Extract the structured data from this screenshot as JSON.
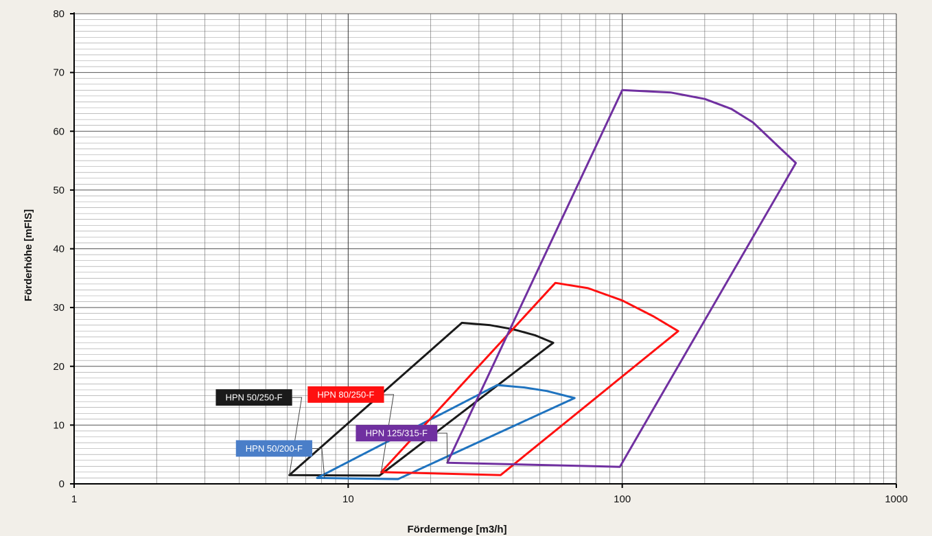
{
  "chart_data": {
    "type": "line",
    "title": "",
    "xlabel": "Fördermenge [m3/h]",
    "ylabel": "Förderhöhe [mFlS]",
    "x_scale": "log",
    "xlim": [
      1,
      1000
    ],
    "ylim": [
      0,
      80
    ],
    "x_ticks": [
      1,
      10,
      100,
      1000
    ],
    "x_tick_labels": [
      "1",
      "10",
      "100",
      "1000"
    ],
    "y_ticks": [
      0,
      10,
      20,
      30,
      40,
      50,
      60,
      70,
      80
    ],
    "y_tick_labels": [
      "0",
      "10",
      "20",
      "30",
      "40",
      "50",
      "60",
      "70",
      "80"
    ],
    "grid": true,
    "minor_grid": true,
    "legend": "callout labels",
    "series": [
      {
        "name": "HPN 50/250-F",
        "color": "#1a1a1a",
        "points": [
          [
            6.1,
            1.5
          ],
          [
            26,
            27.4
          ],
          [
            33,
            27
          ],
          [
            40,
            26.3
          ],
          [
            48,
            25.3
          ],
          [
            56,
            24
          ],
          [
            13,
            1.4
          ],
          [
            6.1,
            1.5
          ]
        ],
        "label_anchor": [
          6.1,
          1.5
        ]
      },
      {
        "name": "HPN 50/200-F",
        "color": "#1f73bf",
        "points": [
          [
            7.7,
            1.0
          ],
          [
            35,
            16.8
          ],
          [
            44,
            16.4
          ],
          [
            53,
            15.8
          ],
          [
            67,
            14.6
          ],
          [
            15.2,
            0.8
          ],
          [
            7.7,
            1.0
          ]
        ],
        "label_anchor": [
          8.2,
          1.0
        ]
      },
      {
        "name": "HPN 80/250-F",
        "color": "#ff1010",
        "points": [
          [
            13.2,
            2.0
          ],
          [
            57,
            34.2
          ],
          [
            75,
            33.3
          ],
          [
            100,
            31.2
          ],
          [
            130,
            28.5
          ],
          [
            160,
            26
          ],
          [
            36,
            1.5
          ],
          [
            13.2,
            2.0
          ]
        ],
        "label_anchor": [
          13.2,
          2.0
        ]
      },
      {
        "name": "HPN 125/315-F",
        "color": "#7030a0",
        "points": [
          [
            23,
            3.6
          ],
          [
            100,
            67
          ],
          [
            150,
            66.6
          ],
          [
            200,
            65.5
          ],
          [
            250,
            63.8
          ],
          [
            300,
            61.5
          ],
          [
            360,
            58
          ],
          [
            430,
            54.6
          ],
          [
            98,
            2.9
          ],
          [
            23,
            3.6
          ]
        ],
        "label_anchor": [
          23,
          3.6
        ]
      }
    ],
    "callouts": [
      {
        "text": "HPN 50/250-F",
        "bg": "#1a1a1a",
        "series": 0,
        "place": "upper-left"
      },
      {
        "text": "HPN 50/200-F",
        "bg": "#4a7ec8",
        "series": 1,
        "place": "left"
      },
      {
        "text": "HPN 80/250-F",
        "bg": "#ff1010",
        "series": 2,
        "place": "upper-left"
      },
      {
        "text": "HPN 125/315-F",
        "bg": "#7030a0",
        "series": 3,
        "place": "left"
      }
    ]
  }
}
